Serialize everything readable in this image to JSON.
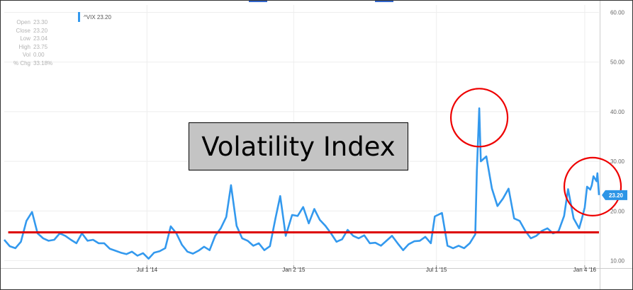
{
  "colors": {
    "series": "#3399ee",
    "support_line": "#dd0000",
    "circle": "#ee0000",
    "badge": "#2d95e6",
    "grid": "#eeeeee",
    "title_bg": "#c4c4c4"
  },
  "stats": [
    {
      "label": "Open",
      "value": "23.30"
    },
    {
      "label": "Close",
      "value": "23.20"
    },
    {
      "label": "Low",
      "value": "23.04"
    },
    {
      "label": "High",
      "value": "23.75"
    },
    {
      "label": "Vol",
      "value": "0.00"
    },
    {
      "label": "% Chg",
      "value": "33.18%"
    }
  ],
  "legend": {
    "label": "^VIX 23.20"
  },
  "title_box": "Volatility Index",
  "last_badge": "23.20",
  "chart_data": {
    "type": "line",
    "series": [
      {
        "name": "^VIX",
        "points": [
          [
            "2014-01-02",
            14.2
          ],
          [
            "2014-01-09",
            12.9
          ],
          [
            "2014-01-16",
            12.5
          ],
          [
            "2014-01-23",
            13.8
          ],
          [
            "2014-01-30",
            18.0
          ],
          [
            "2014-02-06",
            19.8
          ],
          [
            "2014-02-13",
            15.5
          ],
          [
            "2014-02-20",
            14.5
          ],
          [
            "2014-02-27",
            14.0
          ],
          [
            "2014-03-06",
            14.2
          ],
          [
            "2014-03-13",
            15.5
          ],
          [
            "2014-03-20",
            15.0
          ],
          [
            "2014-03-27",
            14.2
          ],
          [
            "2014-04-03",
            13.5
          ],
          [
            "2014-04-10",
            15.5
          ],
          [
            "2014-04-17",
            14.0
          ],
          [
            "2014-04-24",
            14.2
          ],
          [
            "2014-05-01",
            13.5
          ],
          [
            "2014-05-08",
            13.5
          ],
          [
            "2014-05-15",
            12.4
          ],
          [
            "2014-05-22",
            12.0
          ],
          [
            "2014-05-29",
            11.6
          ],
          [
            "2014-06-05",
            11.3
          ],
          [
            "2014-06-12",
            11.8
          ],
          [
            "2014-06-19",
            11.0
          ],
          [
            "2014-06-26",
            11.5
          ],
          [
            "2014-07-03",
            10.4
          ],
          [
            "2014-07-10",
            11.6
          ],
          [
            "2014-07-17",
            11.9
          ],
          [
            "2014-07-24",
            12.5
          ],
          [
            "2014-07-31",
            16.9
          ],
          [
            "2014-08-07",
            15.5
          ],
          [
            "2014-08-14",
            13.2
          ],
          [
            "2014-08-21",
            11.8
          ],
          [
            "2014-08-28",
            11.4
          ],
          [
            "2014-09-04",
            12.0
          ],
          [
            "2014-09-11",
            12.8
          ],
          [
            "2014-09-18",
            12.1
          ],
          [
            "2014-09-25",
            15.0
          ],
          [
            "2014-10-02",
            16.5
          ],
          [
            "2014-10-09",
            18.8
          ],
          [
            "2014-10-15",
            25.2
          ],
          [
            "2014-10-22",
            17.0
          ],
          [
            "2014-10-29",
            14.5
          ],
          [
            "2014-11-05",
            14.0
          ],
          [
            "2014-11-12",
            13.0
          ],
          [
            "2014-11-19",
            13.5
          ],
          [
            "2014-11-26",
            12.1
          ],
          [
            "2014-12-03",
            12.9
          ],
          [
            "2014-12-10",
            18.5
          ],
          [
            "2014-12-16",
            23.0
          ],
          [
            "2014-12-23",
            15.0
          ],
          [
            "2014-12-31",
            19.2
          ],
          [
            "2015-01-07",
            19.0
          ],
          [
            "2015-01-14",
            20.8
          ],
          [
            "2015-01-21",
            17.5
          ],
          [
            "2015-01-28",
            20.4
          ],
          [
            "2015-02-04",
            18.2
          ],
          [
            "2015-02-11",
            17.0
          ],
          [
            "2015-02-18",
            15.5
          ],
          [
            "2015-02-25",
            13.8
          ],
          [
            "2015-03-04",
            14.3
          ],
          [
            "2015-03-11",
            16.2
          ],
          [
            "2015-03-18",
            15.0
          ],
          [
            "2015-03-25",
            14.5
          ],
          [
            "2015-04-01",
            15.1
          ],
          [
            "2015-04-08",
            13.5
          ],
          [
            "2015-04-15",
            13.6
          ],
          [
            "2015-04-22",
            13.0
          ],
          [
            "2015-04-29",
            14.0
          ],
          [
            "2015-05-06",
            15.0
          ],
          [
            "2015-05-13",
            13.5
          ],
          [
            "2015-05-20",
            12.1
          ],
          [
            "2015-05-27",
            13.3
          ],
          [
            "2015-06-03",
            13.9
          ],
          [
            "2015-06-10",
            14.0
          ],
          [
            "2015-06-17",
            14.8
          ],
          [
            "2015-06-24",
            13.5
          ],
          [
            "2015-06-29",
            18.9
          ],
          [
            "2015-07-08",
            19.6
          ],
          [
            "2015-07-15",
            13.0
          ],
          [
            "2015-07-22",
            12.5
          ],
          [
            "2015-07-29",
            13.0
          ],
          [
            "2015-08-05",
            12.5
          ],
          [
            "2015-08-12",
            13.5
          ],
          [
            "2015-08-19",
            15.3
          ],
          [
            "2015-08-21",
            28.0
          ],
          [
            "2015-08-24",
            40.7
          ],
          [
            "2015-08-26",
            30.0
          ],
          [
            "2015-09-02",
            31.0
          ],
          [
            "2015-09-09",
            24.5
          ],
          [
            "2015-09-16",
            21.0
          ],
          [
            "2015-09-23",
            22.5
          ],
          [
            "2015-09-30",
            24.5
          ],
          [
            "2015-10-07",
            18.5
          ],
          [
            "2015-10-14",
            18.0
          ],
          [
            "2015-10-21",
            16.0
          ],
          [
            "2015-10-28",
            14.5
          ],
          [
            "2015-11-04",
            15.0
          ],
          [
            "2015-11-11",
            16.0
          ],
          [
            "2015-11-18",
            16.5
          ],
          [
            "2015-11-25",
            15.5
          ],
          [
            "2015-12-02",
            15.9
          ],
          [
            "2015-12-09",
            19.0
          ],
          [
            "2015-12-14",
            24.4
          ],
          [
            "2015-12-21",
            18.5
          ],
          [
            "2015-12-28",
            16.5
          ],
          [
            "2015-12-31",
            18.2
          ],
          [
            "2016-01-04",
            20.7
          ],
          [
            "2016-01-07",
            24.9
          ],
          [
            "2016-01-11",
            24.3
          ],
          [
            "2016-01-13",
            25.2
          ],
          [
            "2016-01-15",
            27.0
          ],
          [
            "2016-01-19",
            26.0
          ],
          [
            "2016-01-20",
            27.6
          ],
          [
            "2016-01-22",
            23.2
          ]
        ]
      }
    ],
    "x_tick_labels": [
      {
        "date": "2014-07-01",
        "label": "Jul 1 '14"
      },
      {
        "date": "2015-01-02",
        "label": "Jan 2 '15"
      },
      {
        "date": "2015-07-01",
        "label": "Jul 1 '15"
      },
      {
        "date": "2016-01-04",
        "label": "Jan 4 '16"
      }
    ],
    "y_ticks": [
      10,
      20,
      30,
      40,
      50,
      60
    ],
    "y_tick_labels": [
      "10.00",
      "20.00",
      "30.00",
      "40.00",
      "50.00",
      "60.00"
    ],
    "xlim": [
      "2014-01-02",
      "2016-01-22"
    ],
    "ylim": [
      8.5,
      61.5
    ],
    "grid": true,
    "horizontal_line": {
      "y": 15.7,
      "from": "2014-01-07",
      "to": "2016-01-22"
    },
    "highlight_circles": [
      {
        "date": "2015-08-24",
        "y": 38.8
      },
      {
        "date": "2016-01-14",
        "y": 24.9
      }
    ],
    "axis_side": "right"
  }
}
